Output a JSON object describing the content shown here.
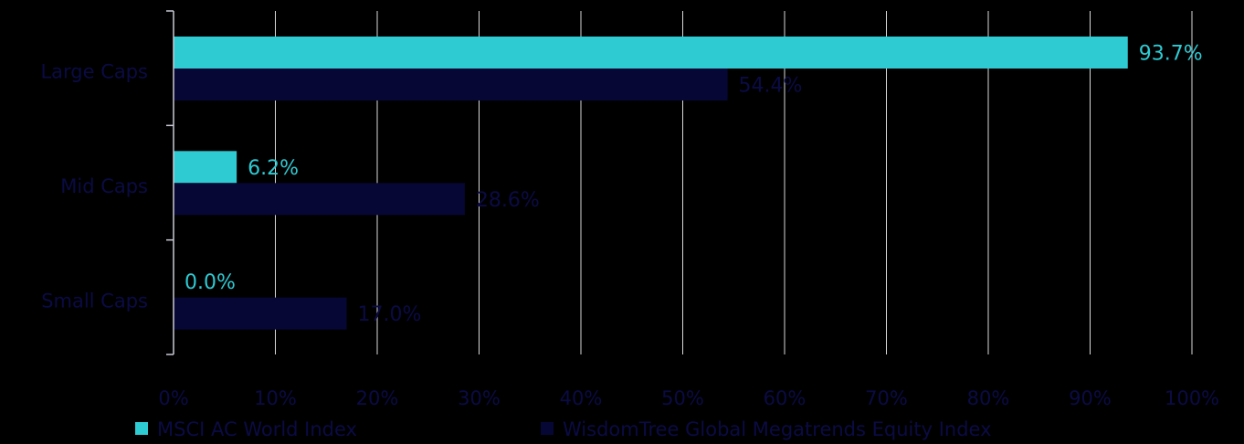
{
  "chart_data": {
    "type": "bar",
    "orientation": "horizontal",
    "categories": [
      "Large Caps",
      "Mid Caps",
      "Small Caps"
    ],
    "series": [
      {
        "name": "MSCI AC World Index",
        "color": "#2ECBD3",
        "label_color": "#2ECBD3",
        "values": [
          93.7,
          6.2,
          0.0
        ],
        "labels": [
          "93.7%",
          "6.2%",
          "0.0%"
        ]
      },
      {
        "name": "WisdomTree Global Megatrends Equity Index",
        "color": "#070735",
        "label_color": "#0B0B45",
        "values": [
          54.4,
          28.6,
          17.0
        ],
        "labels": [
          "54.4%",
          "28.6%",
          "17.0%"
        ]
      }
    ],
    "xlim": [
      0,
      100
    ],
    "xticks": [
      "0%",
      "10%",
      "20%",
      "30%",
      "40%",
      "50%",
      "60%",
      "70%",
      "80%",
      "90%",
      "100%"
    ],
    "grid": true,
    "legend": "bottom",
    "colors": {
      "background": "#000000",
      "gridline": "#D9D9D9",
      "axis_text": "#0B0B45",
      "axis_line": "#C9C9D6"
    }
  }
}
